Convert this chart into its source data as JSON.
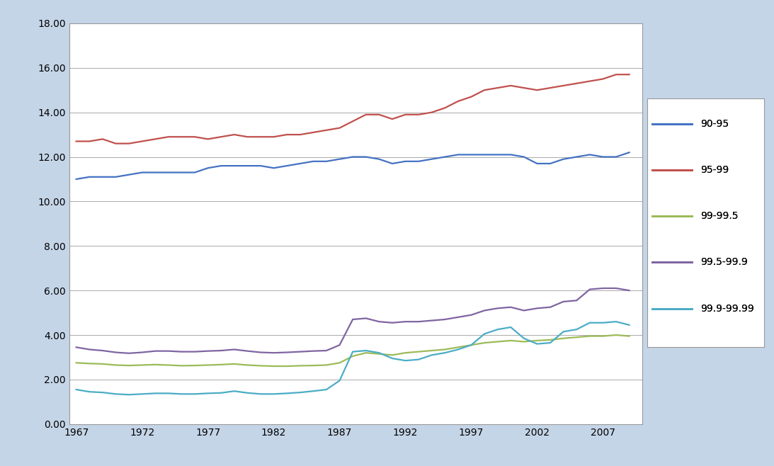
{
  "years": [
    1967,
    1968,
    1969,
    1970,
    1971,
    1972,
    1973,
    1974,
    1975,
    1976,
    1977,
    1978,
    1979,
    1980,
    1981,
    1982,
    1983,
    1984,
    1985,
    1986,
    1987,
    1988,
    1989,
    1990,
    1991,
    1992,
    1993,
    1994,
    1995,
    1996,
    1997,
    1998,
    1999,
    2000,
    2001,
    2002,
    2003,
    2004,
    2005,
    2006,
    2007,
    2008,
    2009
  ],
  "series_order": [
    "90-95",
    "95-99",
    "99-99.5",
    "99.5-99.9",
    "99.9-99.99"
  ],
  "series": {
    "90-95": [
      11.0,
      11.1,
      11.1,
      11.1,
      11.2,
      11.3,
      11.3,
      11.3,
      11.3,
      11.3,
      11.5,
      11.6,
      11.6,
      11.6,
      11.6,
      11.5,
      11.6,
      11.7,
      11.8,
      11.8,
      11.9,
      12.0,
      12.0,
      11.9,
      11.7,
      11.8,
      11.8,
      11.9,
      12.0,
      12.1,
      12.1,
      12.1,
      12.1,
      12.1,
      12.0,
      11.7,
      11.7,
      11.9,
      12.0,
      12.1,
      12.0,
      12.0,
      12.2
    ],
    "95-99": [
      12.7,
      12.7,
      12.8,
      12.6,
      12.6,
      12.7,
      12.8,
      12.9,
      12.9,
      12.9,
      12.8,
      12.9,
      13.0,
      12.9,
      12.9,
      12.9,
      13.0,
      13.0,
      13.1,
      13.2,
      13.3,
      13.6,
      13.9,
      13.9,
      13.7,
      13.9,
      13.9,
      14.0,
      14.2,
      14.5,
      14.7,
      15.0,
      15.1,
      15.2,
      15.1,
      15.0,
      15.1,
      15.2,
      15.3,
      15.4,
      15.5,
      15.7,
      15.7
    ],
    "99-99.5": [
      2.75,
      2.72,
      2.7,
      2.65,
      2.63,
      2.65,
      2.67,
      2.65,
      2.62,
      2.63,
      2.65,
      2.67,
      2.7,
      2.65,
      2.62,
      2.6,
      2.6,
      2.62,
      2.63,
      2.65,
      2.75,
      3.05,
      3.2,
      3.15,
      3.1,
      3.2,
      3.25,
      3.3,
      3.35,
      3.45,
      3.55,
      3.65,
      3.7,
      3.75,
      3.7,
      3.75,
      3.78,
      3.85,
      3.9,
      3.95,
      3.95,
      4.0,
      3.95
    ],
    "99.5-99.9": [
      3.45,
      3.35,
      3.3,
      3.22,
      3.18,
      3.22,
      3.28,
      3.28,
      3.25,
      3.25,
      3.28,
      3.3,
      3.35,
      3.28,
      3.22,
      3.2,
      3.22,
      3.25,
      3.28,
      3.3,
      3.55,
      4.7,
      4.75,
      4.6,
      4.55,
      4.6,
      4.6,
      4.65,
      4.7,
      4.8,
      4.9,
      5.1,
      5.2,
      5.25,
      5.1,
      5.2,
      5.25,
      5.5,
      5.55,
      6.05,
      6.1,
      6.1,
      6.0
    ],
    "99.9-99.99": [
      1.55,
      1.45,
      1.42,
      1.35,
      1.32,
      1.35,
      1.38,
      1.38,
      1.35,
      1.35,
      1.38,
      1.4,
      1.48,
      1.4,
      1.35,
      1.35,
      1.38,
      1.42,
      1.48,
      1.55,
      1.95,
      3.25,
      3.3,
      3.2,
      2.95,
      2.85,
      2.9,
      3.1,
      3.2,
      3.35,
      3.55,
      4.05,
      4.25,
      4.35,
      3.85,
      3.6,
      3.65,
      4.15,
      4.25,
      4.55,
      4.55,
      4.6,
      4.45
    ]
  },
  "colors": {
    "90-95": "#4472C4",
    "95-99": "#C0504D",
    "99-99.5": "#9BBB59",
    "99.5-99.9": "#8064A2",
    "99.9-99.99": "#4BACC6"
  },
  "ylim": [
    0.0,
    18.0
  ],
  "yticks": [
    0.0,
    2.0,
    4.0,
    6.0,
    8.0,
    10.0,
    12.0,
    14.0,
    16.0,
    18.0
  ],
  "xticks": [
    1967,
    1972,
    1977,
    1982,
    1987,
    1992,
    1997,
    2002,
    2007
  ],
  "outer_background": "#C5D5E8",
  "plot_background": "#FFFFFF",
  "line_width": 1.6,
  "legend_fontsize": 10,
  "tick_fontsize": 10
}
